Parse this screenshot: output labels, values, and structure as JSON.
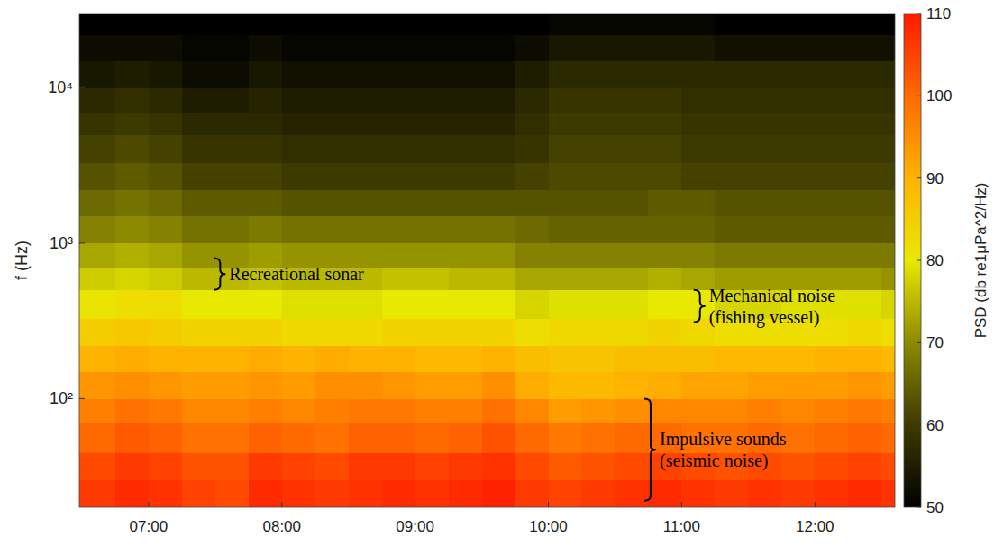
{
  "chart_data": {
    "type": "heatmap",
    "y_label": "f (Hz)",
    "colorbar_label": "PSD (db re1μPa^2/Hz)",
    "log": "y",
    "xlim": [
      6.48,
      12.6
    ],
    "xticks": [
      {
        "value": 7,
        "label": "07:00"
      },
      {
        "value": 8,
        "label": "08:00"
      },
      {
        "value": 9,
        "label": "09:00"
      },
      {
        "value": 10,
        "label": "10:00"
      },
      {
        "value": 11,
        "label": "11:00"
      },
      {
        "value": 12,
        "label": "12:00"
      }
    ],
    "ylim": [
      20,
      30000
    ],
    "yticks": [
      {
        "value": 100,
        "label": "10²"
      },
      {
        "value": 1000,
        "label": "10³"
      },
      {
        "value": 10000,
        "label": "10⁴"
      }
    ],
    "x_edges": [
      6.48,
      6.75,
      7,
      7.25,
      7.5,
      7.75,
      8,
      8.25,
      8.5,
      8.75,
      9,
      9.25,
      9.5,
      9.75,
      10,
      10.25,
      10.5,
      10.75,
      11,
      11.25,
      11.5,
      11.75,
      12,
      12.25,
      12.5,
      12.6
    ],
    "y_edges": [
      20,
      30,
      45,
      70,
      100,
      150,
      220,
      330,
      500,
      700,
      1000,
      1500,
      2200,
      3300,
      5000,
      7000,
      10000,
      15000,
      22000,
      30000
    ],
    "z": [
      [
        106,
        108,
        107,
        105,
        104,
        108,
        107,
        106,
        107,
        108,
        107,
        108,
        109,
        106,
        105,
        106,
        107,
        108,
        107,
        106,
        107,
        106,
        107,
        108,
        107
      ],
      [
        104,
        106,
        105,
        103,
        103,
        106,
        105,
        104,
        106,
        106,
        105,
        106,
        107,
        104,
        102,
        103,
        104,
        105,
        104,
        103,
        104,
        103,
        104,
        105,
        104
      ],
      [
        100,
        102,
        101,
        99,
        99,
        101,
        100,
        99,
        101,
        101,
        100,
        101,
        103,
        100,
        98,
        99,
        100,
        100,
        99,
        99,
        100,
        99,
        100,
        101,
        100
      ],
      [
        97,
        99,
        98,
        96,
        96,
        97,
        96,
        97,
        98,
        98,
        97,
        97,
        99,
        96,
        93,
        94,
        95,
        96,
        96,
        96,
        97,
        96,
        97,
        98,
        97
      ],
      [
        94,
        95,
        94,
        93,
        93,
        94,
        93,
        95,
        95,
        94,
        93,
        93,
        95,
        91,
        89,
        89,
        90,
        91,
        92,
        92,
        93,
        93,
        93,
        94,
        93
      ],
      [
        90,
        91,
        90,
        90,
        90,
        91,
        90,
        91,
        90,
        90,
        89,
        89,
        90,
        88,
        87,
        87,
        88,
        88,
        88,
        89,
        89,
        89,
        90,
        90,
        89
      ],
      [
        85,
        86,
        85,
        84,
        84,
        84,
        83,
        83,
        83,
        84,
        84,
        84,
        84,
        82,
        83,
        83,
        83,
        84,
        83,
        82,
        82,
        82,
        82,
        83,
        82
      ],
      [
        81,
        82,
        82,
        80,
        80,
        80,
        79,
        79,
        79,
        80,
        80,
        80,
        80,
        78,
        79,
        79,
        79,
        80,
        80,
        78,
        78,
        79,
        79,
        79,
        78
      ],
      [
        77,
        78,
        77,
        75,
        75,
        76,
        75,
        75,
        75,
        76,
        76,
        75,
        75,
        73,
        73,
        73,
        73,
        74,
        73,
        72,
        72,
        72,
        72,
        72,
        71
      ],
      [
        73,
        74,
        73,
        71,
        71,
        72,
        71,
        71,
        71,
        71,
        71,
        71,
        71,
        69,
        69,
        69,
        69,
        69,
        69,
        68,
        68,
        68,
        68,
        68,
        68
      ],
      [
        69,
        70,
        69,
        67,
        67,
        68,
        67,
        67,
        67,
        67,
        67,
        67,
        67,
        66,
        65,
        65,
        65,
        65,
        65,
        64,
        64,
        64,
        64,
        64,
        64
      ],
      [
        66,
        67,
        66,
        64,
        64,
        64,
        63,
        63,
        63,
        63,
        63,
        63,
        63,
        63,
        63,
        63,
        63,
        64,
        64,
        63,
        63,
        63,
        63,
        63,
        63
      ],
      [
        63,
        64,
        63,
        61,
        61,
        61,
        60,
        60,
        60,
        60,
        60,
        60,
        60,
        61,
        62,
        62,
        62,
        62,
        61,
        61,
        61,
        61,
        61,
        61,
        61
      ],
      [
        61,
        62,
        61,
        59,
        59,
        59,
        58,
        58,
        58,
        58,
        58,
        58,
        58,
        59,
        61,
        61,
        61,
        61,
        60,
        60,
        60,
        60,
        60,
        60,
        60
      ],
      [
        59,
        60,
        59,
        57,
        57,
        57,
        56,
        56,
        56,
        56,
        56,
        56,
        56,
        58,
        60,
        60,
        60,
        60,
        59,
        59,
        59,
        59,
        59,
        59,
        59
      ],
      [
        57,
        58,
        57,
        55,
        55,
        56,
        55,
        55,
        55,
        55,
        55,
        55,
        55,
        57,
        59,
        59,
        59,
        59,
        58,
        58,
        58,
        58,
        58,
        58,
        58
      ],
      [
        54,
        55,
        54,
        52,
        52,
        54,
        53,
        53,
        53,
        53,
        53,
        53,
        53,
        55,
        57,
        57,
        57,
        57,
        57,
        57,
        57,
        57,
        57,
        57,
        57
      ],
      [
        52,
        52,
        52,
        51,
        51,
        52,
        51,
        51,
        51,
        51,
        51,
        51,
        51,
        52,
        54,
        54,
        54,
        54,
        54,
        53,
        53,
        53,
        53,
        53,
        53
      ],
      [
        50,
        50,
        50,
        50,
        50,
        50,
        50,
        50,
        50,
        50,
        50,
        50,
        50,
        50,
        51,
        51,
        51,
        51,
        51,
        50,
        50,
        50,
        50,
        50,
        50
      ]
    ],
    "colorbar_range": [
      50,
      110
    ],
    "colorbar_ticks": [
      50,
      60,
      70,
      80,
      90,
      100,
      110
    ],
    "annotations": [
      {
        "lines": [
          "Recreational sonar"
        ],
        "x": 7.49,
        "y": [
          500,
          800
        ]
      },
      {
        "lines": [
          "Mechanical noise",
          "(fishing vessel)"
        ],
        "x": 11.09,
        "y": [
          310,
          500
        ]
      },
      {
        "lines": [
          "Impulsive sounds",
          "(seismic noise)"
        ],
        "x": 10.72,
        "y": [
          22,
          100
        ]
      }
    ]
  }
}
